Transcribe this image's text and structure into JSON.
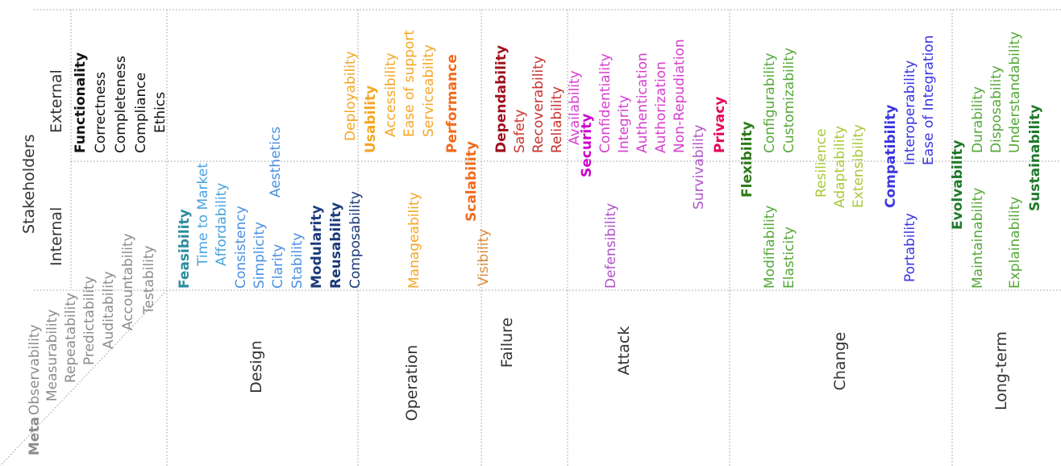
{
  "stakeholders": {
    "title": "Stakeholders",
    "external": "External",
    "internal": "Internal"
  },
  "columns": {
    "design": "Design",
    "operation": "Operation",
    "failure": "Failure",
    "attack": "Attack",
    "change": "Change",
    "longterm": "Long-term"
  },
  "colors": {
    "black": "#111111",
    "gray": "#8c8c8c",
    "teal": "#2a8d9c",
    "sky": "#4aa3df",
    "lightblue": "#4a90e2",
    "navy": "#1a3a7a",
    "orange": "#f5a623",
    "redorange": "#f06a1a",
    "brown": "#d98c3a",
    "darkred": "#9e0f1c",
    "red": "#c8322e",
    "magenta": "#d63fcf",
    "purple": "#cc00cc",
    "orchid": "#b054c8",
    "hotpink": "#e8005a",
    "olive": "#7dbb24",
    "darkgreen": "#2c7a17",
    "green": "#55a838",
    "lime": "#a8c83a",
    "blue": "#3a36e0",
    "emerald": "#1f7a2a",
    "mauve": "#b0649c"
  },
  "labels": {
    "functionality": "Functionality",
    "correctness": "Correctness",
    "completeness": "Completeness",
    "compliance": "Compliance",
    "ethics": "Ethics",
    "meta": "Meta",
    "observability": "Observability",
    "measurability": "Measurability",
    "repeatability": "Repeatability",
    "predictability": "Predictability",
    "auditability": "Auditability",
    "accountability": "Accountability",
    "testability": "Testability",
    "feasibility": "Feasibility",
    "time_to_market": "Time to Market",
    "affordability": "Affordability",
    "consistency": "Consistency",
    "simplicity": "Simplicity",
    "clarity": "Clarity",
    "stability": "Stability",
    "modularity": "Modularity",
    "reusability": "Reusability",
    "aesthetics": "Aesthetics",
    "composability": "Composability",
    "deployability": "Deployability",
    "usability": "Usability",
    "accessibility": "Accessibility",
    "ease_of_support": "Ease of support",
    "serviceability": "Serviceability",
    "performance": "Performance",
    "scalability": "Scalability",
    "manageability": "Manageability",
    "visibility": "Visibility",
    "dependability": "Dependability",
    "safety": "Safety",
    "recoverability": "Recoverability",
    "reliability": "Reliability",
    "availability": "Availability",
    "security": "Security",
    "confidentiality": "Confidentiality",
    "integrity": "Integrity",
    "authentication": "Authentication",
    "authorization": "Authorization",
    "non_repudiation": "Non-Repudiation",
    "defensibility": "Defensibility",
    "survivability": "Survivability",
    "privacy": "Privacy",
    "flexibility": "Flexibility",
    "configurability": "Configurability",
    "customizability": "Customizability",
    "modifiability": "Modifiability",
    "elasticity": "Elasticity",
    "resilience": "Resilience",
    "adaptability": "Adaptability",
    "extensibility": "Extensibility",
    "compatibility": "Compatibility",
    "interoperability": "Interoperability",
    "ease_of_integration": "Ease of Integration",
    "portability": "Portability",
    "evolvability": "Evolvability",
    "durability": "Durability",
    "disposability": "Disposability",
    "understandability": "Understandability",
    "maintainability": "Maintainability",
    "explainability": "Explainability",
    "sustainability": "Sustainability"
  }
}
